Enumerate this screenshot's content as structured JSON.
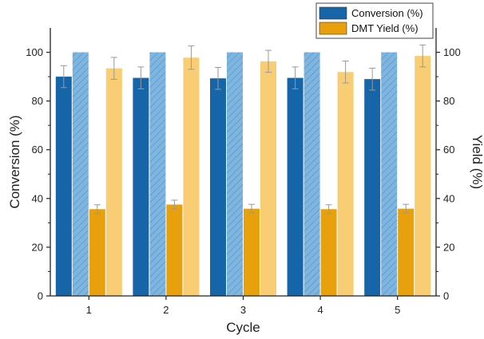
{
  "chart_data": {
    "type": "bar",
    "xlabel": "Cycle",
    "ylabel_left": "Conversion (%)",
    "ylabel_right": "Yield (%)",
    "ylim": [
      0,
      110
    ],
    "yticks": [
      0,
      20,
      40,
      60,
      80,
      100
    ],
    "categories": [
      "1",
      "2",
      "3",
      "4",
      "5"
    ],
    "legend_position": "top-right",
    "series": [
      {
        "name": "Conversion (%)",
        "color": "#1565a8",
        "pattern": "solid",
        "axis": "left",
        "values": [
          90.0,
          89.5,
          89.3,
          89.5,
          89.0
        ],
        "errors": [
          4.5,
          4.5,
          4.5,
          4.5,
          4.5
        ]
      },
      {
        "name": "",
        "color": "#7eb6e0",
        "pattern": "hatched",
        "axis": "right",
        "values": [
          100,
          100,
          100,
          100,
          100
        ],
        "errors": [
          0,
          0,
          0,
          0,
          0
        ]
      },
      {
        "name": "DMT Yield (%)",
        "color": "#e8a00d",
        "pattern": "solid",
        "axis": "left",
        "values": [
          35.6,
          37.5,
          35.8,
          35.6,
          35.8
        ],
        "errors": [
          1.8,
          1.8,
          1.8,
          1.8,
          1.8
        ]
      },
      {
        "name": "",
        "color": "#f9cd73",
        "pattern": "solid",
        "axis": "right",
        "values": [
          93.4,
          97.8,
          96.3,
          91.9,
          98.5
        ],
        "errors": [
          4.5,
          4.8,
          4.5,
          4.5,
          4.5
        ]
      }
    ]
  }
}
